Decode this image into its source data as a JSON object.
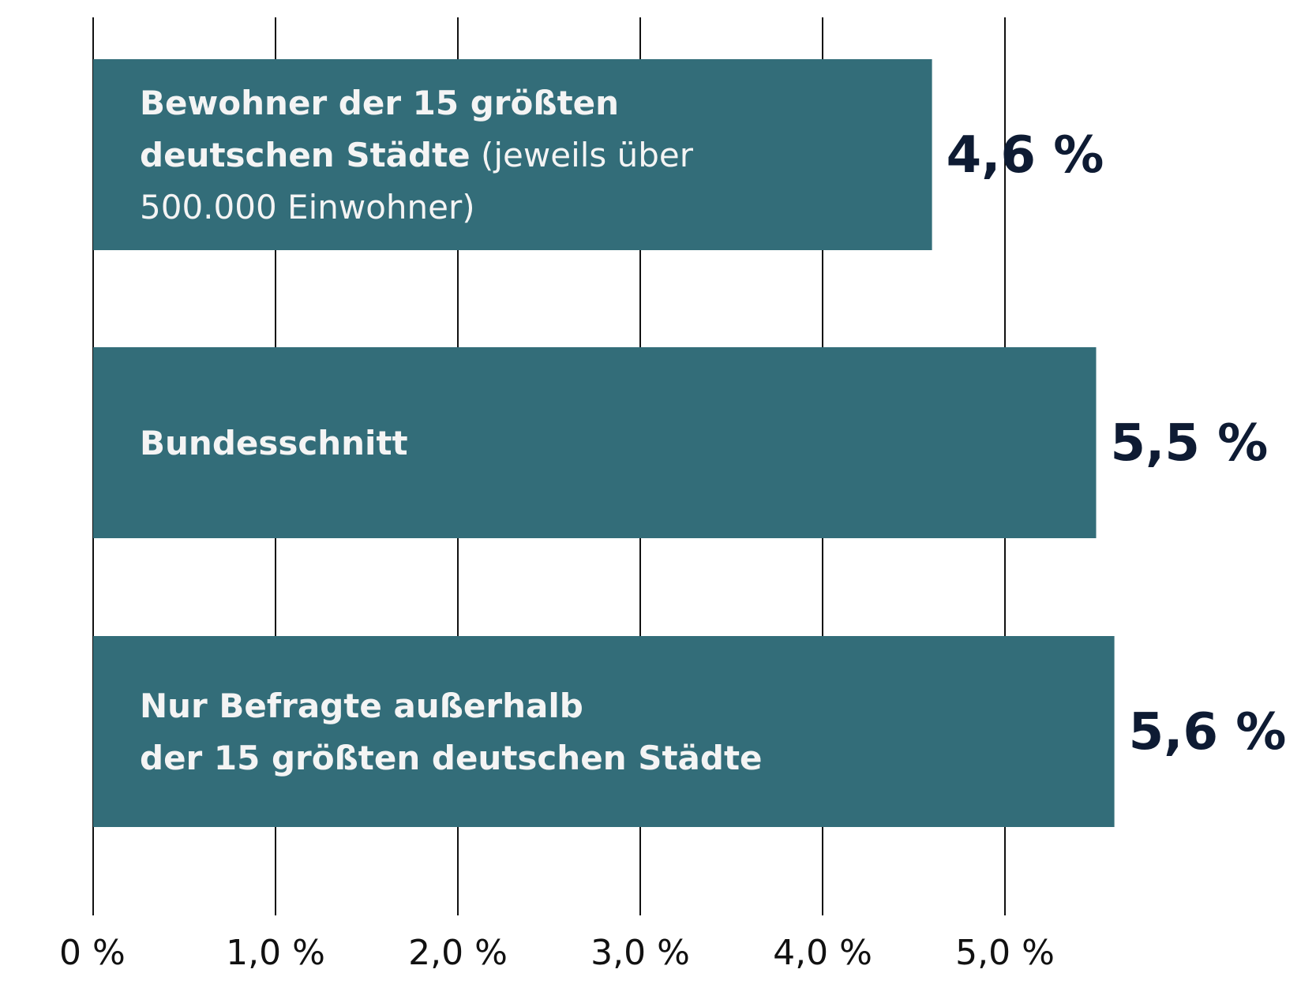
{
  "chart_data": {
    "type": "bar",
    "orientation": "horizontal",
    "categories": [
      "Bewohner der 15 größten deutschen Städte (jeweils über 500.000 Einwohner)",
      "Bundesschnitt",
      "Nur Befragte außerhalb der 15 größten deutschen Städte"
    ],
    "values": [
      4.6,
      5.5,
      5.6
    ],
    "value_labels": [
      "4,6 %",
      "5,5 %",
      "5,6 %"
    ],
    "bar_label_lines": [
      [
        [
          {
            "text": "Bewohner der 15 größten",
            "bold": true
          }
        ],
        [
          {
            "text": "deutschen Städte",
            "bold": true
          },
          {
            "text": " (jeweils über",
            "bold": false
          }
        ],
        [
          {
            "text": "500.000 Einwohner)",
            "bold": false
          }
        ]
      ],
      [
        [
          {
            "text": "Bundesschnitt",
            "bold": true
          }
        ]
      ],
      [
        [
          {
            "text": "Nur Befragte außerhalb",
            "bold": true
          }
        ],
        [
          {
            "text": "der 15 größten deutschen Städte",
            "bold": true
          }
        ]
      ]
    ],
    "x_ticks": [
      0,
      1,
      2,
      3,
      4,
      5
    ],
    "x_tick_labels": [
      "0 %",
      "1,0 %",
      "2,0 %",
      "3,0 %",
      "4,0 %",
      "5,0 %"
    ],
    "xlim": [
      0,
      6
    ],
    "grid": true,
    "bar_color": "#336d79",
    "label_color": "#f4f4f4",
    "value_color": "#0e1b33"
  }
}
